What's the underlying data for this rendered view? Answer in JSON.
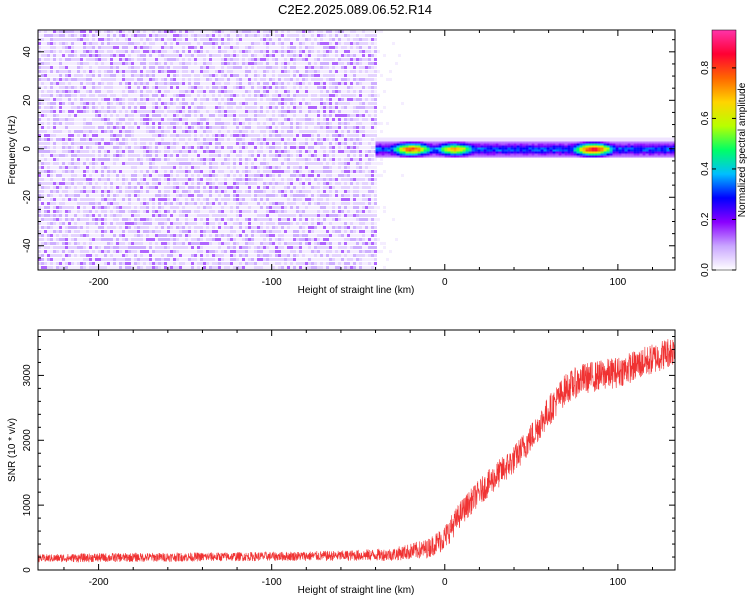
{
  "figure": {
    "title": "C2E2.2025.089.06.52.R14"
  },
  "chart_data": [
    {
      "type": "heatmap",
      "title": "C2E2.2025.089.06.52.R14",
      "xlabel": "Height of straight line (km)",
      "ylabel": "Frequency (Hz)",
      "xlim": [
        -235,
        133
      ],
      "ylim": [
        -50,
        49
      ],
      "x_ticks": [
        -200,
        -100,
        0,
        100
      ],
      "x_tick_labels": [
        "-200",
        "-100",
        "0",
        "100"
      ],
      "y_ticks": [
        -40,
        -20,
        0,
        20,
        40
      ],
      "y_tick_labels": [
        "-40",
        "-20",
        "0",
        "20",
        "40"
      ],
      "colorbar": {
        "label": "Normalized spectral amplitude",
        "range": [
          0.0,
          0.95
        ],
        "ticks": [
          0.0,
          0.2,
          0.4,
          0.6,
          0.8
        ],
        "tick_labels": [
          "0.0",
          "0.2",
          "0.4",
          "0.6",
          "0.8"
        ],
        "colormap": [
          "#ffffff",
          "#c9a6ff",
          "#8a00ff",
          "#0000ff",
          "#00bfff",
          "#00ff66",
          "#b8ff00",
          "#ffd400",
          "#ff6600",
          "#ff0033",
          "#ff33aa"
        ]
      },
      "noise_region": {
        "x_range": [
          -235,
          -40
        ],
        "freq_range": [
          -50,
          49
        ],
        "typical_amplitude": [
          0.05,
          0.15
        ]
      },
      "signal_band": {
        "x_range": [
          -40,
          133
        ],
        "center_frequency": 0.5,
        "half_width_hz": 2.5,
        "peaks": [
          {
            "x": -20,
            "frequency": 1.5,
            "amplitude": 0.8
          },
          {
            "x": 5,
            "frequency": 0.5,
            "amplitude": 0.7
          },
          {
            "x": 85,
            "frequency": 1.0,
            "amplitude": 0.9
          }
        ]
      },
      "grid": false
    },
    {
      "type": "line",
      "xlabel": "Height of straight line (km)",
      "ylabel": "SNR (10 * v/v)",
      "xlim": [
        -235,
        133
      ],
      "ylim": [
        0,
        3700
      ],
      "x_ticks": [
        -200,
        -100,
        0,
        100
      ],
      "x_tick_labels": [
        "-200",
        "-100",
        "0",
        "100"
      ],
      "y_ticks": [
        0,
        1000,
        2000,
        3000
      ],
      "y_tick_labels": [
        "0",
        "1000",
        "2000",
        "3000"
      ],
      "color": "#f03232",
      "series": [
        {
          "x": [
            -235,
            -200,
            -150,
            -100,
            -60,
            -30,
            -10,
            0,
            10,
            20,
            30,
            40,
            50,
            60,
            70,
            80,
            90,
            100,
            110,
            120,
            133
          ],
          "y": [
            180,
            190,
            200,
            210,
            220,
            240,
            330,
            500,
            900,
            1200,
            1450,
            1700,
            2050,
            2450,
            2800,
            2950,
            3000,
            3050,
            3150,
            3250,
            3400
          ],
          "noise_amplitude": [
            60,
            70,
            70,
            70,
            80,
            100,
            150,
            200,
            200,
            200,
            220,
            220,
            230,
            240,
            240,
            240,
            240,
            240,
            240,
            240,
            240
          ]
        }
      ],
      "grid": false
    }
  ]
}
